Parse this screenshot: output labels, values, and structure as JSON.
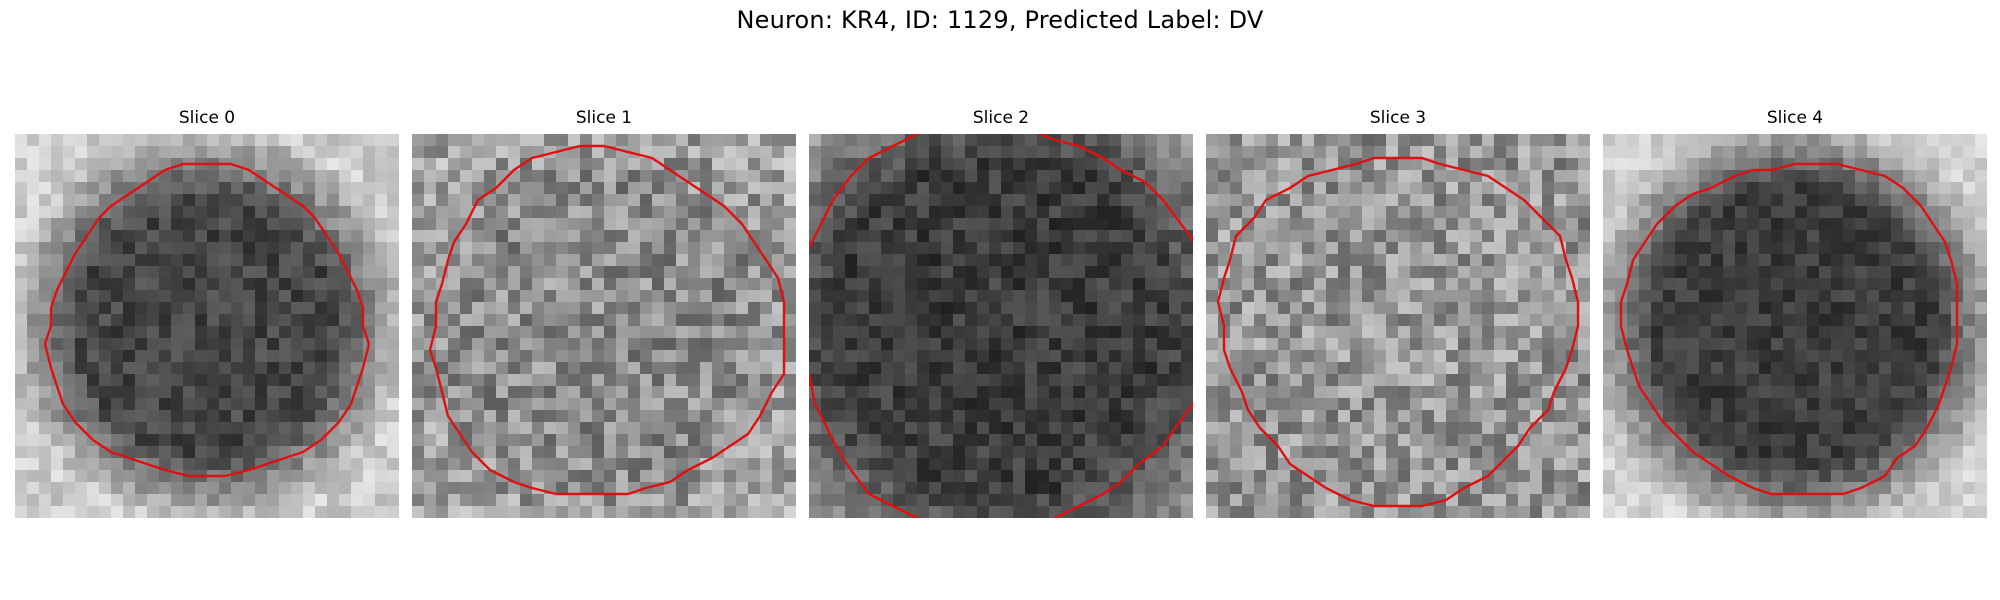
{
  "figure": {
    "title": "Neuron: KR4, ID: 1129, Predicted Label: DV"
  },
  "panels": [
    {
      "title": "Slice 0",
      "center_tone": 70,
      "bg_tone": 205,
      "noise": 26,
      "radius": 0.42
    },
    {
      "title": "Slice 1",
      "center_tone": 140,
      "bg_tone": 165,
      "noise": 48,
      "radius": 0.47
    },
    {
      "title": "Slice 2",
      "center_tone": 60,
      "bg_tone": 150,
      "noise": 28,
      "radius": 0.55
    },
    {
      "title": "Slice 3",
      "center_tone": 150,
      "bg_tone": 150,
      "noise": 50,
      "radius": 0.47
    },
    {
      "title": "Slice 4",
      "center_tone": 60,
      "bg_tone": 210,
      "noise": 22,
      "radius": 0.45
    }
  ],
  "contour_color": "#e01010",
  "colormap": "gray"
}
